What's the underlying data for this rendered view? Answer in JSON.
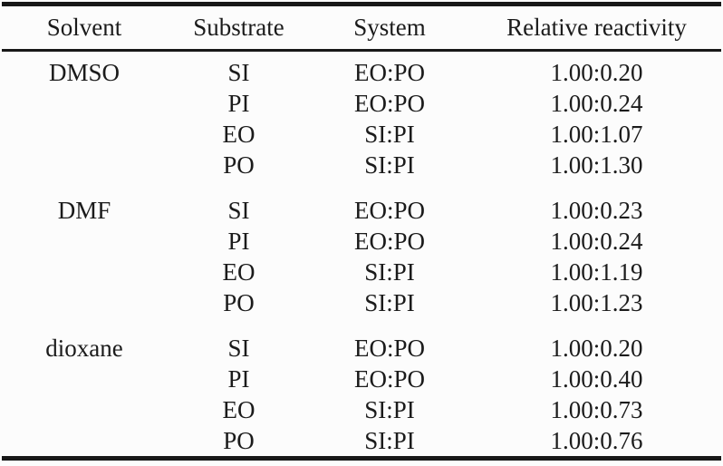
{
  "table": {
    "columns": [
      "Solvent",
      "Substrate",
      "System",
      "Relative reactivity"
    ],
    "sections": [
      {
        "solvent": "DMSO",
        "rows": [
          [
            "SI",
            "EO:PO",
            "1.00:0.20"
          ],
          [
            "PI",
            "EO:PO",
            "1.00:0.24"
          ],
          [
            "EO",
            "SI:PI",
            "1.00:1.07"
          ],
          [
            "PO",
            "SI:PI",
            "1.00:1.30"
          ]
        ]
      },
      {
        "solvent": "DMF",
        "rows": [
          [
            "SI",
            "EO:PO",
            "1.00:0.23"
          ],
          [
            "PI",
            "EO:PO",
            "1.00:0.24"
          ],
          [
            "EO",
            "SI:PI",
            "1.00:1.19"
          ],
          [
            "PO",
            "SI:PI",
            "1.00:1.23"
          ]
        ]
      },
      {
        "solvent": "dioxane",
        "rows": [
          [
            "SI",
            "EO:PO",
            "1.00:0.20"
          ],
          [
            "PI",
            "EO:PO",
            "1.00:0.40"
          ],
          [
            "EO",
            "SI:PI",
            "1.00:0.73"
          ],
          [
            "PO",
            "SI:PI",
            "1.00:0.76"
          ]
        ]
      }
    ],
    "colors": {
      "text": "#1b1b1b",
      "rule": "#181818",
      "background": "#fcfcfc"
    }
  },
  "chart_data": {
    "type": "table",
    "title": "",
    "columns": [
      "Solvent",
      "Substrate",
      "System",
      "Relative reactivity"
    ],
    "rows": [
      [
        "DMSO",
        "SI",
        "EO:PO",
        "1.00:0.20"
      ],
      [
        "DMSO",
        "PI",
        "EO:PO",
        "1.00:0.24"
      ],
      [
        "DMSO",
        "EO",
        "SI:PI",
        "1.00:1.07"
      ],
      [
        "DMSO",
        "PO",
        "SI:PI",
        "1.00:1.30"
      ],
      [
        "DMF",
        "SI",
        "EO:PO",
        "1.00:0.23"
      ],
      [
        "DMF",
        "PI",
        "EO:PO",
        "1.00:0.24"
      ],
      [
        "DMF",
        "EO",
        "SI:PI",
        "1.00:1.19"
      ],
      [
        "DMF",
        "PO",
        "SI:PI",
        "1.00:1.23"
      ],
      [
        "dioxane",
        "SI",
        "EO:PO",
        "1.00:0.20"
      ],
      [
        "dioxane",
        "PI",
        "EO:PO",
        "1.00:0.40"
      ],
      [
        "dioxane",
        "EO",
        "SI:PI",
        "1.00:0.73"
      ],
      [
        "dioxane",
        "PO",
        "SI:PI",
        "1.00:0.76"
      ]
    ]
  }
}
